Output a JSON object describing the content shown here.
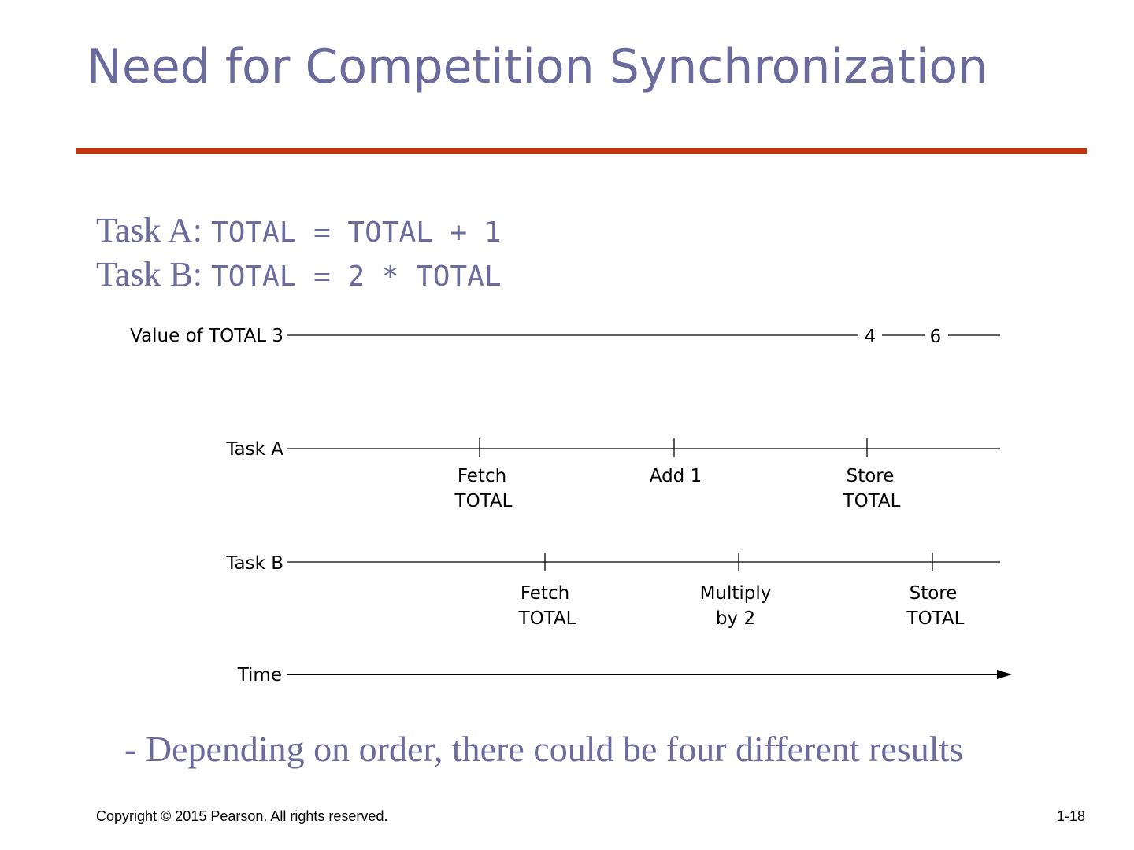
{
  "slide": {
    "title": "Need for Competition Synchronization",
    "accent_color": "#c0360e",
    "text_color": "#6b6b9e"
  },
  "tasks": {
    "a_label": "Task A: ",
    "a_code": "TOTAL = TOTAL + 1",
    "b_label": "Task B: ",
    "b_code": "TOTAL = 2 * TOTAL"
  },
  "diagram": {
    "value_row_label": "Value of TOTAL 3",
    "value_4": "4",
    "value_6": "6",
    "task_a_label": "Task A",
    "task_a_events": [
      {
        "line1": "Fetch",
        "line2": "TOTAL"
      },
      {
        "line1": "Add 1",
        "line2": ""
      },
      {
        "line1": "Store",
        "line2": "TOTAL"
      }
    ],
    "task_b_label": "Task B",
    "task_b_events": [
      {
        "line1": "Fetch",
        "line2": "TOTAL"
      },
      {
        "line1": "Multiply",
        "line2": "by 2"
      },
      {
        "line1": "Store",
        "line2": "TOTAL"
      }
    ],
    "time_label": "Time"
  },
  "note": "- Depending on order, there could be four different results",
  "footer": {
    "copyright": "Copyright © 2015 Pearson. All rights reserved.",
    "slide_number": "1-18"
  }
}
